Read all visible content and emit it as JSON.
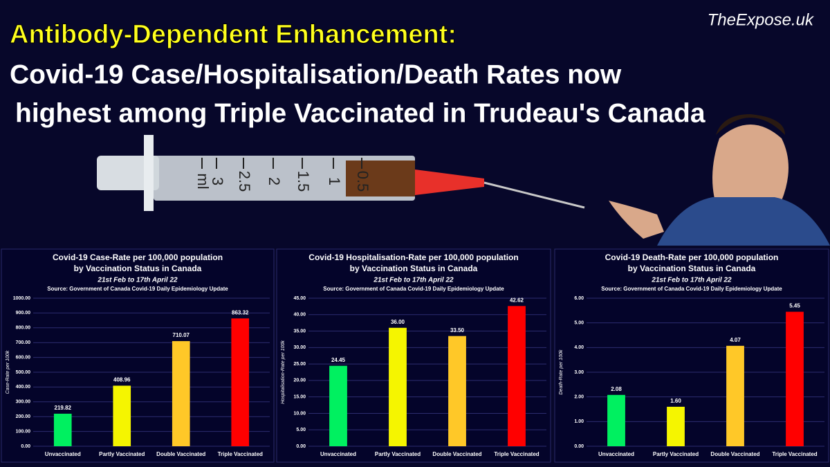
{
  "header": {
    "headline": "Antibody-Dependent Enhancement:",
    "lines": [
      "Covid-19 Case/Hospitalisation/Death Rates now",
      "highest among Triple Vaccinated in Trudeau's Canada"
    ],
    "brand": "TheExpose.uk",
    "syringe_labels": [
      "ml",
      "3",
      "2.5",
      "2",
      "1.5",
      "1",
      "0.5"
    ]
  },
  "chart_data": [
    {
      "type": "bar",
      "title": [
        "Covid-19 Case-Rate per 100,000 population",
        "by Vaccination Status in Canada"
      ],
      "subtitle": "21st Feb to 17th April 22",
      "source": "Source: Government of Canada Covid-19 Daily Epidemiology Update",
      "ylabel": "Case-Rate per 100k",
      "categories": [
        "Unvaccinated",
        "Partly Vaccinated",
        "Double Vaccinated",
        "Triple Vaccinated"
      ],
      "values": [
        219.82,
        408.96,
        710.07,
        863.32
      ],
      "colors": [
        "#00f060",
        "#f5f500",
        "#ffc828",
        "#ff0000"
      ],
      "ylim": [
        0,
        1000
      ],
      "yticks": [
        {
          "value": 0,
          "label": "0.00"
        },
        {
          "value": 100,
          "label": "100.00"
        },
        {
          "value": 200,
          "label": "200.00"
        },
        {
          "value": 300,
          "label": "300.00"
        },
        {
          "value": 400,
          "label": "400.00"
        },
        {
          "value": 500,
          "label": "500.00"
        },
        {
          "value": 600,
          "label": "600.00"
        },
        {
          "value": 700,
          "label": "700.00"
        },
        {
          "value": 800,
          "label": "800.00"
        },
        {
          "value": 900,
          "label": "900.00"
        },
        {
          "value": 1000,
          "label": "1000.00"
        }
      ],
      "grid": true
    },
    {
      "type": "bar",
      "title": [
        "Covid-19 Hospitalisation-Rate per 100,000 population",
        "by Vaccination Status in Canada"
      ],
      "subtitle": "21st Feb to 17th April 22",
      "source": "Source: Government of Canada Covid-19 Daily Epidemiology Update",
      "ylabel": "Hospitalisation-Rate per 100k",
      "categories": [
        "Unvaccinated",
        "Partly Vaccinated",
        "Double Vaccinated",
        "Triple Vaccinated"
      ],
      "values": [
        24.45,
        36,
        33.5,
        42.62
      ],
      "value_labels": [
        "24.45",
        "36.00",
        "33.50",
        "42.62"
      ],
      "colors": [
        "#00f060",
        "#f5f500",
        "#ffc828",
        "#ff0000"
      ],
      "ylim": [
        0,
        45
      ],
      "yticks": [
        {
          "value": 0,
          "label": "0.00"
        },
        {
          "value": 5,
          "label": "5.00"
        },
        {
          "value": 10,
          "label": "10.00"
        },
        {
          "value": 15,
          "label": "15.00"
        },
        {
          "value": 20,
          "label": "20.00"
        },
        {
          "value": 25,
          "label": "25.00"
        },
        {
          "value": 30,
          "label": "30.00"
        },
        {
          "value": 35,
          "label": "35.00"
        },
        {
          "value": 40,
          "label": "40.00"
        },
        {
          "value": 45,
          "label": "45.00"
        }
      ],
      "grid": true
    },
    {
      "type": "bar",
      "title": [
        "Covid-19 Death-Rate per 100,000 population",
        "by Vaccination Status in Canada"
      ],
      "subtitle": "21st Feb to 17th April 22",
      "source": "Source: Government of Canada Covid-19 Daily Epidemiology Update",
      "ylabel": "Death-Rate per 100k",
      "categories": [
        "Unvaccinated",
        "Partly Vaccinated",
        "Double Vaccinated",
        "Triple Vaccinated"
      ],
      "values": [
        2.08,
        1.6,
        4.07,
        5.45
      ],
      "value_labels": [
        "2.08",
        "1.60",
        "4.07",
        "5.45"
      ],
      "colors": [
        "#00f060",
        "#f5f500",
        "#ffc828",
        "#ff0000"
      ],
      "ylim": [
        0,
        6
      ],
      "yticks": [
        {
          "value": 0,
          "label": "0.00"
        },
        {
          "value": 1,
          "label": "1.00"
        },
        {
          "value": 2,
          "label": "2.00"
        },
        {
          "value": 3,
          "label": "3.00"
        },
        {
          "value": 4,
          "label": "4.00"
        },
        {
          "value": 5,
          "label": "5.00"
        },
        {
          "value": 6,
          "label": "6.00"
        }
      ],
      "grid": true
    }
  ]
}
